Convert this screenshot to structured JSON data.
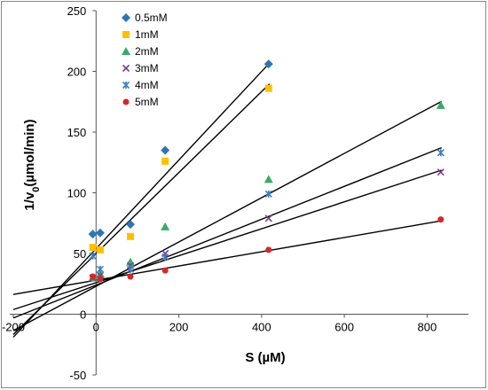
{
  "chart_data": {
    "type": "scatter",
    "title": "",
    "xlabel": "S (µM)",
    "ylabel_main": "1/v",
    "ylabel_sub": "0",
    "ylabel_unit": "(µmol/min)",
    "xlim": [
      -200,
      900
    ],
    "ylim": [
      -50,
      250
    ],
    "xticks": [
      -200,
      0,
      200,
      400,
      600,
      800
    ],
    "yticks": [
      -50,
      0,
      50,
      100,
      150,
      200,
      250
    ],
    "grid": false,
    "legend_position": "top-left",
    "series": [
      {
        "name": "0.5mM",
        "marker": "diamond",
        "color": "#2e75b6",
        "x": [
          -8,
          10,
          83,
          167,
          417
        ],
        "y": [
          66,
          67,
          74,
          135,
          206
        ],
        "fit": {
          "slope": 0.3647,
          "intercept": 54.0
        }
      },
      {
        "name": "1mM",
        "marker": "square",
        "color": "#ffc000",
        "x": [
          -8,
          10,
          83,
          167,
          417
        ],
        "y": [
          55,
          53,
          64,
          126,
          186
        ],
        "fit": {
          "slope": 0.3333,
          "intercept": 50.0
        }
      },
      {
        "name": "2mM",
        "marker": "triangle",
        "color": "#3aaa6a",
        "x": [
          -8,
          10,
          83,
          167,
          417,
          833
        ],
        "y": [
          30,
          33,
          43,
          72,
          111,
          172
        ],
        "fit": {
          "slope": 0.1824,
          "intercept": 23.0
        }
      },
      {
        "name": "3mM",
        "marker": "x",
        "color": "#7b3f8f",
        "x": [
          -8,
          10,
          83,
          167,
          417,
          833
        ],
        "y": [
          30,
          32,
          40,
          50,
          79,
          117
        ],
        "fit": {
          "slope": 0.1109,
          "intercept": 26.0
        }
      },
      {
        "name": "4mM",
        "marker": "star",
        "color": "#3c7fc0",
        "x": [
          -8,
          10,
          83,
          167,
          417,
          833
        ],
        "y": [
          48,
          37,
          37,
          47,
          99,
          133
        ],
        "fit": {
          "slope": 0.1355,
          "intercept": 24.0
        }
      },
      {
        "name": "5mM",
        "marker": "circle",
        "color": "#d62728",
        "x": [
          -8,
          10,
          83,
          167,
          417,
          833
        ],
        "y": [
          31,
          29,
          31,
          36,
          53,
          78
        ],
        "fit": {
          "slope": 0.0586,
          "intercept": 28.0
        }
      }
    ]
  }
}
